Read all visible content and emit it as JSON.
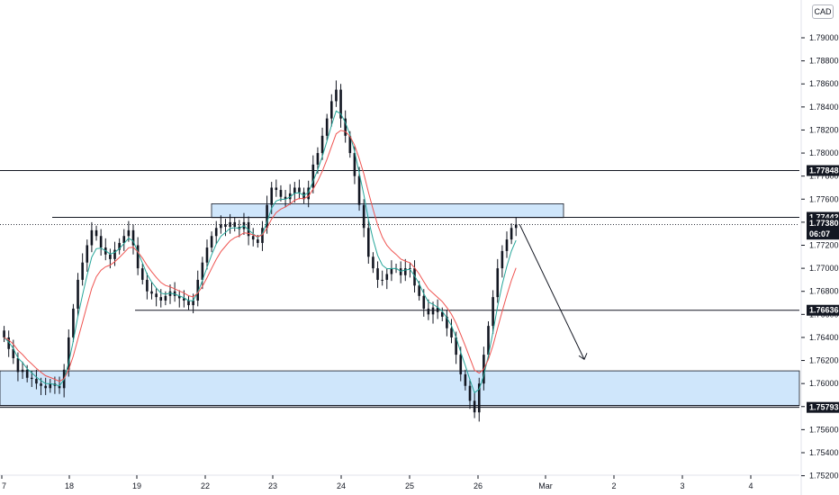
{
  "header": {
    "currency": "CAD"
  },
  "colors": {
    "zone_fill": "#cfe6fb",
    "zone_stroke": "#131722",
    "candle": "#131722",
    "ema_fast": "#26a69a",
    "ema_slow": "#ef5350",
    "dotted": "#131722"
  },
  "chart_data": {
    "type": "candlestick",
    "title": "",
    "xlabel": "",
    "ylabel": "",
    "ylim": [
      1.7515,
      1.7925
    ],
    "y_ticks": [
      1.752,
      1.754,
      1.756,
      1.758,
      1.76,
      1.762,
      1.764,
      1.766,
      1.768,
      1.77,
      1.772,
      1.774,
      1.776,
      1.778,
      1.78,
      1.782,
      1.784,
      1.786,
      1.788,
      1.79
    ],
    "y_tick_labels": [
      "1.75200",
      "1.75400",
      "1.75600",
      "1.75800",
      "1.76000",
      "1.76200",
      "1.76400",
      "1.76600",
      "1.76800",
      "1.77000",
      "1.77200",
      "1.77400",
      "1.77600",
      "1.77800",
      "1.78000",
      "1.78200",
      "1.78400",
      "1.78600",
      "1.78800",
      "1.79000"
    ],
    "x_ticks": [
      "7",
      "18",
      "19",
      "22",
      "23",
      "24",
      "25",
      "26",
      "Mar",
      "2",
      "3",
      "4"
    ],
    "levels": [
      1.77848,
      1.77442,
      1.76636,
      1.75793
    ],
    "level_labels": [
      "1.77848",
      "1.77442",
      "1.76636",
      "1.75793"
    ],
    "current_price": "1.77380",
    "countdown": "06:07",
    "zones": [
      {
        "name": "resistance-zone",
        "low": 1.7744,
        "high": 1.7756
      },
      {
        "name": "support-zone",
        "low": 1.7581,
        "high": 1.7611
      }
    ],
    "candles_per_day": 14,
    "day_closes": [
      1.7632,
      1.773,
      1.767,
      1.7742,
      1.7782,
      1.7691,
      1.7664,
      1.7738
    ],
    "path_close": [
      1.764,
      1.763,
      1.7622,
      1.761,
      1.7612,
      1.7605,
      1.7604,
      1.76,
      1.7598,
      1.7596,
      1.76,
      1.7598,
      1.7596,
      1.7612,
      1.764,
      1.7665,
      1.769,
      1.7705,
      1.772,
      1.7733,
      1.7728,
      1.7718,
      1.7712,
      1.7708,
      1.7716,
      1.7722,
      1.7728,
      1.7733,
      1.772,
      1.77,
      1.769,
      1.768,
      1.7678,
      1.7675,
      1.7672,
      1.7676,
      1.768,
      1.7676,
      1.7674,
      1.7672,
      1.7668,
      1.7672,
      1.769,
      1.7705,
      1.7718,
      1.7728,
      1.7735,
      1.7738,
      1.7736,
      1.774,
      1.7736,
      1.7734,
      1.774,
      1.7728,
      1.7725,
      1.7722,
      1.7735,
      1.7755,
      1.777,
      1.7768,
      1.7762,
      1.776,
      1.7765,
      1.777,
      1.7766,
      1.776,
      1.777,
      1.779,
      1.78,
      1.7815,
      1.783,
      1.7845,
      1.7855,
      1.783,
      1.7815,
      1.78,
      1.778,
      1.7755,
      1.7735,
      1.771,
      1.77,
      1.769,
      1.769,
      1.7695,
      1.77,
      1.77,
      1.7694,
      1.77,
      1.77,
      1.7685,
      1.7676,
      1.7665,
      1.766,
      1.7666,
      1.7662,
      1.7658,
      1.7648,
      1.764,
      1.7625,
      1.7608,
      1.7598,
      1.7585,
      1.7575,
      1.76,
      1.7625,
      1.765,
      1.7675,
      1.77,
      1.7715,
      1.7725,
      1.7735,
      1.7738
    ],
    "projection": {
      "from": 1.7738,
      "to": 1.7621
    },
    "grid": false,
    "legend": "none"
  }
}
